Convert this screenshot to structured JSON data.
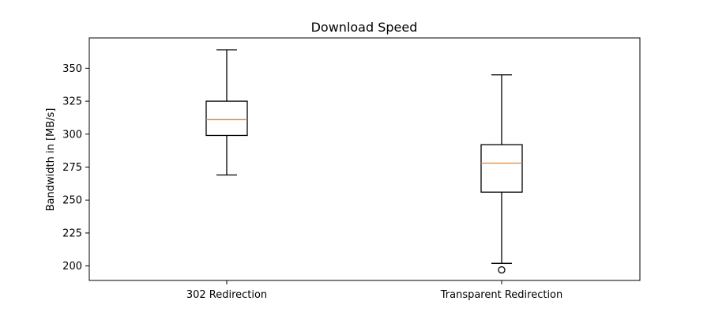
{
  "chart_data": {
    "type": "boxplot",
    "title": "Download Speed",
    "xlabel": "",
    "ylabel": "Bandwidth in [MB/s]",
    "ylim": [
      189,
      373
    ],
    "yticks": [
      200,
      225,
      250,
      275,
      300,
      325,
      350
    ],
    "grid": false,
    "categories": [
      "302 Redirection",
      "Transparent Redirection"
    ],
    "boxes": [
      {
        "label": "302 Redirection",
        "whisker_low": 269,
        "q1": 299,
        "median": 311,
        "q3": 325,
        "whisker_high": 364,
        "outliers": []
      },
      {
        "label": "Transparent Redirection",
        "whisker_low": 202,
        "q1": 256,
        "median": 278,
        "q3": 292,
        "whisker_high": 345,
        "outliers": [
          197
        ]
      }
    ],
    "colors": {
      "box": "#000000",
      "median": "#ff7f0e",
      "whisker": "#000000",
      "outlier": "#000000"
    }
  }
}
